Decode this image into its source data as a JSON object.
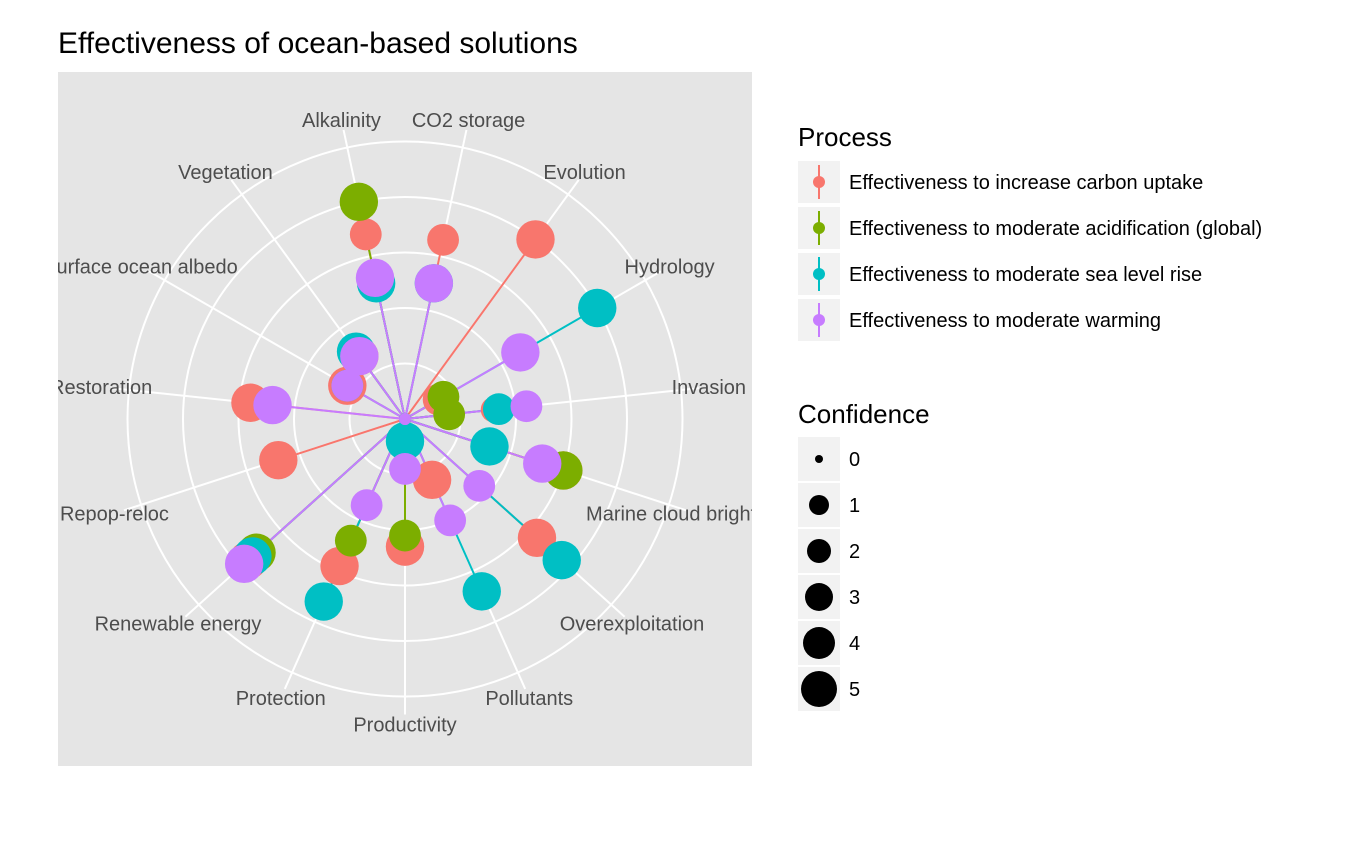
{
  "chart_data": {
    "type": "radar",
    "title": "Effectiveness of ocean-based solutions",
    "categories": [
      "Alkalinity",
      "CO2 storage",
      "Evolution",
      "Hydrology",
      "Invasion",
      "Marine cloud brightening",
      "Overexploitation",
      "Pollutants",
      "Productivity",
      "Protection",
      "Renewable energy",
      "Repop-reloc",
      "Restoration",
      "Surface ocean albedo",
      "Vegetation"
    ],
    "rlim": [
      0,
      4
    ],
    "grid": true,
    "legend_position": "right",
    "series": [
      {
        "name": "Effectiveness to increase carbon uptake",
        "color": "#F8766D",
        "values": [
          3.4,
          3.3,
          4.0,
          0.7,
          1.6,
          3.0,
          3.2,
          1.2,
          2.3,
          2.9,
          3.8,
          2.4,
          2.8,
          1.2,
          1.4
        ],
        "confidence": [
          3,
          3,
          4,
          3,
          2,
          4,
          4,
          4,
          4,
          4,
          4,
          4,
          4,
          4,
          4
        ]
      },
      {
        "name": "Effectiveness to moderate acidification (global)",
        "color": "#7CAE00",
        "values": [
          4.0,
          0.0,
          0.0,
          0.8,
          0.8,
          3.0,
          0.0,
          0.0,
          2.1,
          2.4,
          3.6,
          0.0,
          0.0,
          0.0,
          1.4
        ],
        "confidence": [
          4,
          0,
          0,
          3,
          3,
          4,
          0,
          0,
          3,
          3,
          4,
          0,
          0,
          0,
          3
        ]
      },
      {
        "name": "Effectiveness to moderate sea level rise",
        "color": "#00BFC4",
        "values": [
          2.5,
          2.5,
          0.0,
          4.0,
          1.7,
          1.6,
          3.8,
          3.4,
          0.4,
          3.6,
          3.7,
          0.0,
          0.0,
          1.2,
          1.5
        ],
        "confidence": [
          4,
          4,
          0,
          4,
          3,
          4,
          4,
          4,
          4,
          4,
          4,
          0,
          0,
          3,
          4
        ]
      },
      {
        "name": "Effectiveness to moderate warming",
        "color": "#C77CFF",
        "values": [
          2.6,
          2.5,
          0.0,
          2.4,
          2.2,
          2.6,
          1.8,
          2.0,
          0.9,
          1.7,
          3.9,
          0.0,
          2.4,
          1.2,
          1.4
        ],
        "confidence": [
          4,
          4,
          0,
          4,
          3,
          4,
          3,
          3,
          3,
          3,
          4,
          0,
          4,
          3,
          4
        ]
      }
    ],
    "size_legend": {
      "title": "Confidence",
      "levels": [
        "0",
        "1",
        "2",
        "3",
        "4",
        "5"
      ]
    },
    "color_legend": {
      "title": "Process"
    }
  }
}
